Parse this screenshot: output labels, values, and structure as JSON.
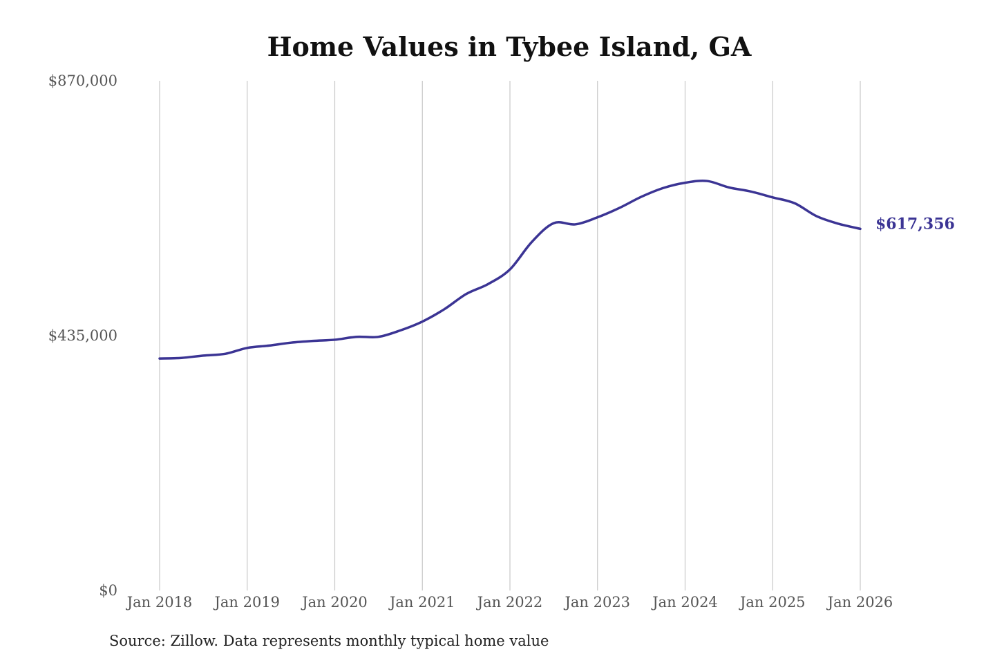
{
  "chart_data": {
    "type": "line",
    "title": "Home Values in Tybee Island, GA",
    "xlabel": "",
    "ylabel": "",
    "ylim": [
      0,
      870000
    ],
    "y_ticks": [
      0,
      435000,
      870000
    ],
    "y_tick_labels": [
      "$0",
      "$435,000",
      "$870,000"
    ],
    "x_ticks": [
      "2018-01",
      "2019-01",
      "2020-01",
      "2021-01",
      "2022-01",
      "2023-01",
      "2024-01",
      "2025-01",
      "2026-01"
    ],
    "x_tick_labels": [
      "Jan 2018",
      "Jan 2019",
      "Jan 2020",
      "Jan 2021",
      "Jan 2022",
      "Jan 2023",
      "Jan 2024",
      "Jan 2025",
      "Jan 2026"
    ],
    "grid": "vertical",
    "line_color": "#3b3494",
    "end_label": "$617,356",
    "x": [
      "2018-01",
      "2018-04",
      "2018-07",
      "2018-10",
      "2019-01",
      "2019-04",
      "2019-07",
      "2019-10",
      "2020-01",
      "2020-04",
      "2020-07",
      "2020-10",
      "2021-01",
      "2021-04",
      "2021-07",
      "2021-10",
      "2022-01",
      "2022-04",
      "2022-07",
      "2022-10",
      "2023-01",
      "2023-04",
      "2023-07",
      "2023-10",
      "2024-01",
      "2024-04",
      "2024-07",
      "2024-10",
      "2025-01",
      "2025-04",
      "2025-07",
      "2025-10",
      "2026-01"
    ],
    "values": [
      396000,
      397000,
      401000,
      404000,
      414000,
      418000,
      423000,
      426000,
      428000,
      433000,
      433000,
      444000,
      459000,
      480000,
      506000,
      523000,
      548000,
      595000,
      627000,
      625000,
      637000,
      653000,
      672000,
      687000,
      696000,
      699000,
      688000,
      681000,
      671000,
      661000,
      639000,
      626000,
      617356
    ]
  },
  "source": "Source: Zillow. Data represents monthly typical home value"
}
